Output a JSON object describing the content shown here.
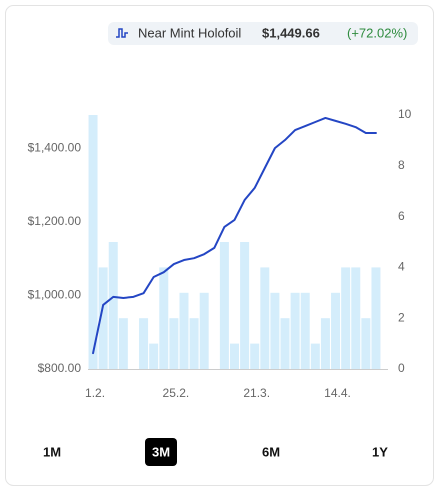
{
  "chart_data": {
    "type": "combo",
    "legend": {
      "name": "Near Mint Holofoil",
      "price": "$1,449.66",
      "change": "(+72.02%)",
      "change_color": "#2e8b3e"
    },
    "categories": [
      "1.2.",
      null,
      null,
      null,
      null,
      null,
      null,
      null,
      "25.2.",
      null,
      null,
      null,
      null,
      null,
      null,
      null,
      "21.3.",
      null,
      null,
      null,
      null,
      null,
      null,
      null,
      "14.4.",
      null,
      null,
      null,
      null
    ],
    "series": [
      {
        "name": "Near Mint Holofoil",
        "type": "line",
        "color": "#2446c4",
        "values": [
          843,
          974,
          996,
          993,
          996,
          1006,
          1050,
          1063,
          1085,
          1096,
          1101,
          1112,
          1129,
          1186,
          1205,
          1259,
          1292,
          1346,
          1400,
          1422,
          1449,
          1460,
          1471,
          1482,
          1474,
          1466,
          1457,
          1441,
          1441
        ]
      },
      {
        "type": "bar",
        "axis": "y2",
        "color": "#d4edfb",
        "values": [
          10,
          4,
          5,
          2,
          0,
          2,
          1,
          4,
          2,
          3,
          2,
          3,
          0,
          5,
          1,
          5,
          1,
          4,
          3,
          2,
          3,
          3,
          1,
          2,
          3,
          4,
          4,
          2,
          4
        ]
      }
    ],
    "ylim": [
      800,
      1490
    ],
    "yticks": [
      {
        "value": 800,
        "label": "$800.00"
      },
      {
        "value": 1000,
        "label": "$1,000.00"
      },
      {
        "value": 1200,
        "label": "$1,200.00"
      },
      {
        "value": 1400,
        "label": "$1,400.00"
      }
    ],
    "y2lim": [
      0,
      10
    ],
    "y2ticks": [
      0,
      2,
      4,
      6,
      8,
      10
    ],
    "ranges": [
      "1M",
      "3M",
      "6M",
      "1Y"
    ],
    "selected_range": 1
  }
}
